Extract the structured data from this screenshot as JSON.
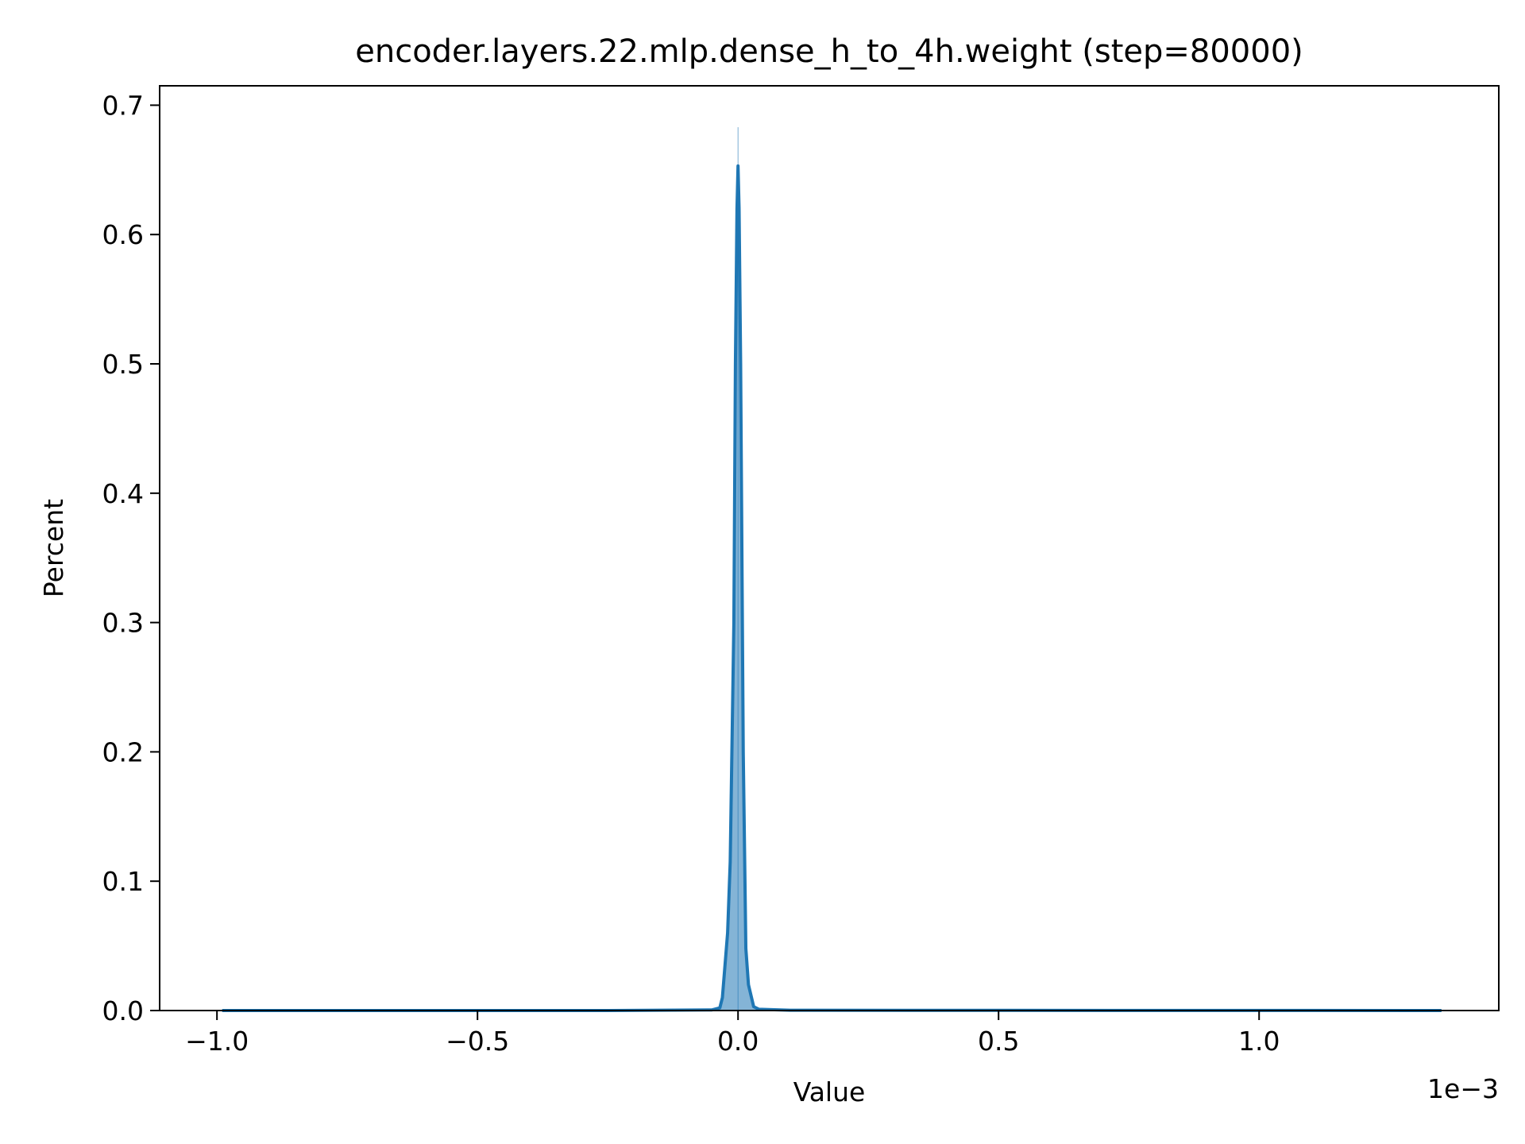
{
  "chart_data": {
    "type": "area",
    "title": "encoder.layers.22.mlp.dense_h_to_4h.weight (step=80000)",
    "xlabel": "Value",
    "ylabel": "Percent",
    "x_offset_label": "1e−3",
    "xlim": [
      -0.00111,
      0.00146
    ],
    "ylim": [
      0,
      0.715
    ],
    "x_ticks": [
      {
        "value": -0.001,
        "label": "−1.0"
      },
      {
        "value": -0.0005,
        "label": "−0.5"
      },
      {
        "value": 0.0,
        "label": "0.0"
      },
      {
        "value": 0.0005,
        "label": "0.5"
      },
      {
        "value": 0.001,
        "label": "1.0"
      }
    ],
    "y_ticks": [
      {
        "value": 0.0,
        "label": "0.0"
      },
      {
        "value": 0.1,
        "label": "0.1"
      },
      {
        "value": 0.2,
        "label": "0.2"
      },
      {
        "value": 0.3,
        "label": "0.3"
      },
      {
        "value": 0.4,
        "label": "0.4"
      },
      {
        "value": 0.5,
        "label": "0.5"
      },
      {
        "value": 0.6,
        "label": "0.6"
      },
      {
        "value": 0.7,
        "label": "0.7"
      }
    ],
    "grid": false,
    "line_color": "#1f77b4",
    "fill_color": "#1f77b4",
    "series": [
      {
        "x": [
          -0.00099,
          -0.00025,
          -5e-05,
          -3.5e-05,
          -3e-05,
          -2e-05,
          -1.5e-05,
          -8e-06,
          -5e-06,
          -2e-06,
          0.0,
          2e-06,
          5e-06,
          1e-05,
          1.5e-05,
          2e-05,
          3e-05,
          4e-05,
          0.0001,
          0.00135
        ],
        "y": [
          0.0,
          0.0,
          0.0005,
          0.002,
          0.01,
          0.06,
          0.115,
          0.3,
          0.5,
          0.62,
          0.653,
          0.62,
          0.5,
          0.2,
          0.048,
          0.02,
          0.003,
          0.001,
          0.0002,
          0.0
        ]
      }
    ],
    "spike": {
      "x": 0.0,
      "y": 0.683
    }
  }
}
